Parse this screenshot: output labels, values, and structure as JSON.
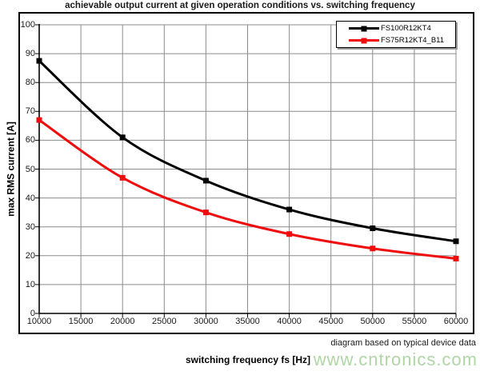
{
  "footnote": "diagram based on typical device data",
  "watermark": "www.cntronics.com",
  "colors": {
    "grid": "#8c8c8c",
    "axis": "#000000",
    "tick_text": "#1a1a1a",
    "watermark_green": "#b0d6a6",
    "legend_shadow": "#9a9a9a",
    "series_black": "#000000",
    "series_red": "#ee0c0c"
  },
  "chart_data": {
    "type": "line",
    "title": "achievable output current at given operation conditions vs. switching frequency",
    "xlabel": "switching frequency fs [Hz]",
    "ylabel": "max RMS current [A]",
    "xlim": [
      10000,
      60000
    ],
    "ylim": [
      0,
      100
    ],
    "x_ticks": [
      10000,
      15000,
      20000,
      25000,
      30000,
      35000,
      40000,
      45000,
      50000,
      55000,
      60000
    ],
    "y_ticks": [
      0,
      10,
      20,
      30,
      40,
      50,
      60,
      70,
      80,
      90,
      100
    ],
    "grid": true,
    "legend_position": "top-right",
    "x": [
      10000,
      20000,
      30000,
      40000,
      50000,
      60000
    ],
    "series": [
      {
        "name": "FS100R12KT4",
        "color": "#000000",
        "marker": "square",
        "values": [
          87.5,
          61,
          46,
          36,
          29.5,
          25
        ]
      },
      {
        "name": "FS75R12KT4_B11",
        "color": "#ee0c0c",
        "marker": "square",
        "values": [
          67,
          47,
          35,
          27.5,
          22.5,
          19
        ]
      }
    ]
  }
}
